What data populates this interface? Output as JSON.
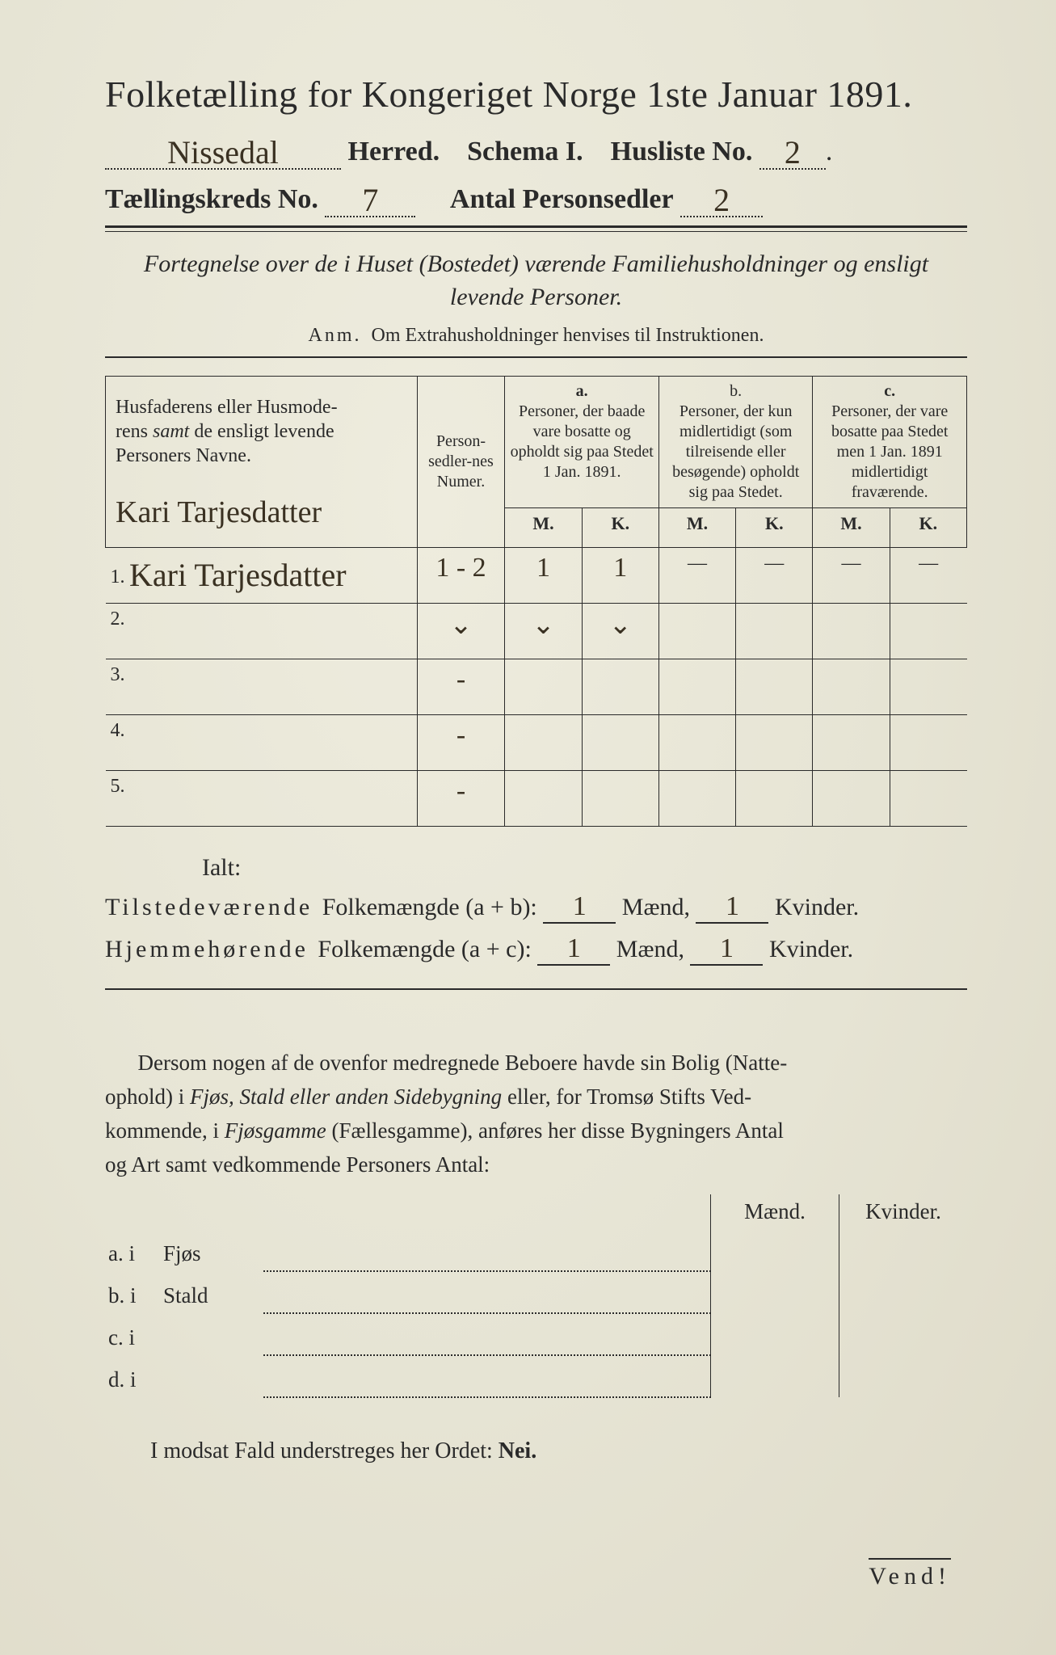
{
  "header": {
    "title": "Folketælling for Kongeriget Norge 1ste Januar 1891.",
    "herred_handwritten": "Nissedal",
    "herred_label": "Herred.",
    "schema_label": "Schema I.",
    "husliste_label": "Husliste No.",
    "husliste_no_handwritten": "2",
    "kreds_label": "Tællingskreds No.",
    "kreds_no_handwritten": "7",
    "antal_label": "Antal Personsedler",
    "antal_handwritten": "2"
  },
  "fortegnelse": {
    "line1": "Fortegnelse over de i Huset (Bostedet) værende Familiehusholdninger og ensligt",
    "line2": "levende Personer."
  },
  "anm": {
    "prefix": "Anm.",
    "text": "Om Extrahusholdninger henvises til Instruktionen."
  },
  "table": {
    "col_name": "Husfaderens eller Husmoderens samt de ensligt levende Personers Navne.",
    "col_numer": "Person-sedler-nes Numer.",
    "col_a_label": "a.",
    "col_a_text": "Personer, der baade vare bosatte og opholdt sig paa Stedet 1 Jan. 1891.",
    "col_b_label": "b.",
    "col_b_text": "Personer, der kun midlertidigt (som tilreisende eller besøgende) opholdt sig paa Stedet.",
    "col_c_label": "c.",
    "col_c_text": "Personer, der vare bosatte paa Stedet men 1 Jan. 1891 midlertidigt fraværende.",
    "m": "M.",
    "k": "K.",
    "head_name_hw": "Kari Tarjesdatter",
    "rows": [
      {
        "n": "1.",
        "name_hw": "Kari Tarjesdatter",
        "numer": "1 - 2",
        "a_m": "1",
        "a_k": "1",
        "b_m": "—",
        "b_k": "—",
        "c_m": "—",
        "c_k": "—"
      },
      {
        "n": "2.",
        "name_hw": "",
        "numer": "⌄",
        "a_m": "⌄",
        "a_k": "⌄",
        "b_m": "",
        "b_k": "",
        "c_m": "",
        "c_k": ""
      },
      {
        "n": "3.",
        "name_hw": "",
        "numer": "-",
        "a_m": "",
        "a_k": "",
        "b_m": "",
        "b_k": "",
        "c_m": "",
        "c_k": ""
      },
      {
        "n": "4.",
        "name_hw": "",
        "numer": "-",
        "a_m": "",
        "a_k": "",
        "b_m": "",
        "b_k": "",
        "c_m": "",
        "c_k": ""
      },
      {
        "n": "5.",
        "name_hw": "",
        "numer": "-",
        "a_m": "",
        "a_k": "",
        "b_m": "",
        "b_k": "",
        "c_m": "",
        "c_k": ""
      }
    ]
  },
  "totals": {
    "ialt": "Ialt:",
    "tilstede_label": "Tilstedeværende Folkemængde (a + b):",
    "hjemme_label": "Hjemmehørende Folkemængde (a + c):",
    "maend": "Mænd,",
    "kvinder": "Kvinder.",
    "tilstede_m": "1",
    "tilstede_k": "1",
    "hjemme_m": "1",
    "hjemme_k": "1"
  },
  "para": "Dersom nogen af de ovenfor medregnede Beboere havde sin Bolig (Natteophold) i Fjøs, Stald eller anden Sidebygning eller, for Tromsø Stifts Vedkommende, i Fjøsgamme (Fællesgamme), anføres her disse Bygningers Antal og Art samt vedkommende Personers Antal:",
  "mk": {
    "maend": "Mænd.",
    "kvinder": "Kvinder.",
    "rows": [
      {
        "lbl": "a.  i",
        "word": "Fjøs"
      },
      {
        "lbl": "b.  i",
        "word": "Stald"
      },
      {
        "lbl": "c.  i",
        "word": ""
      },
      {
        "lbl": "d.  i",
        "word": ""
      }
    ]
  },
  "modsat": "I modsat Fald understreges her Ordet: Nei.",
  "vend": "Vend!"
}
